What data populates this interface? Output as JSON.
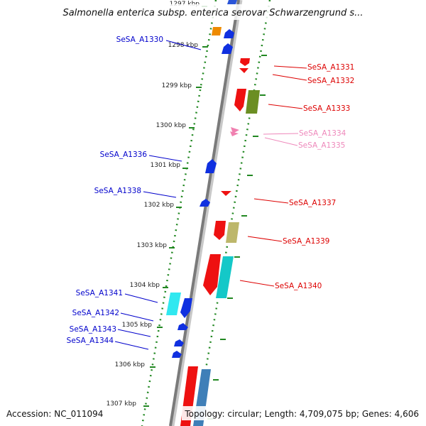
{
  "title": "Salmonella enterica subsp. enterica serovar Schwarzengrund s...",
  "footer": {
    "accession": "Accession: NC_011094",
    "topology": "Topology: circular; Length: 4,709,075 bp; Genes: 4,606"
  },
  "colors": {
    "forward_label": "#0000cc",
    "reverse_label": "#dd0000",
    "rna_label": "#ee88bb",
    "tick_green": "#228822",
    "backbone": "#777777"
  },
  "kbp_markers": [
    "1297 kbp",
    "1298 kbp",
    "1299 kbp",
    "1300 kbp",
    "1301 kbp",
    "1302 kbp",
    "1303 kbp",
    "1304 kbp",
    "1305 kbp",
    "1306 kbp",
    "1307 kbp"
  ],
  "genes": [
    {
      "id": "SeSA_A1330",
      "label": "SeSA_A1330",
      "group": "forward"
    },
    {
      "id": "SeSA_A1331",
      "label": "SeSA_A1331",
      "group": "reverse"
    },
    {
      "id": "SeSA_A1332",
      "label": "SeSA_A1332",
      "group": "reverse"
    },
    {
      "id": "SeSA_A1333",
      "label": "SeSA_A1333",
      "group": "reverse"
    },
    {
      "id": "SeSA_A1334",
      "label": "SeSA_A1334",
      "group": "rna"
    },
    {
      "id": "SeSA_A1335",
      "label": "SeSA_A1335",
      "group": "rna"
    },
    {
      "id": "SeSA_A1336",
      "label": "SeSA_A1336",
      "group": "forward"
    },
    {
      "id": "SeSA_A1337",
      "label": "SeSA_A1337",
      "group": "reverse"
    },
    {
      "id": "SeSA_A1338",
      "label": "SeSA_A1338",
      "group": "forward"
    },
    {
      "id": "SeSA_A1339",
      "label": "SeSA_A1339",
      "group": "reverse"
    },
    {
      "id": "SeSA_A1340",
      "label": "SeSA_A1340",
      "group": "reverse"
    },
    {
      "id": "SeSA_A1341",
      "label": "SeSA_A1341",
      "group": "forward"
    },
    {
      "id": "SeSA_A1342",
      "label": "SeSA_A1342",
      "group": "forward"
    },
    {
      "id": "SeSA_A1343",
      "label": "SeSA_A1343",
      "group": "forward"
    },
    {
      "id": "SeSA_A1344",
      "label": "SeSA_A1344",
      "group": "forward"
    }
  ]
}
